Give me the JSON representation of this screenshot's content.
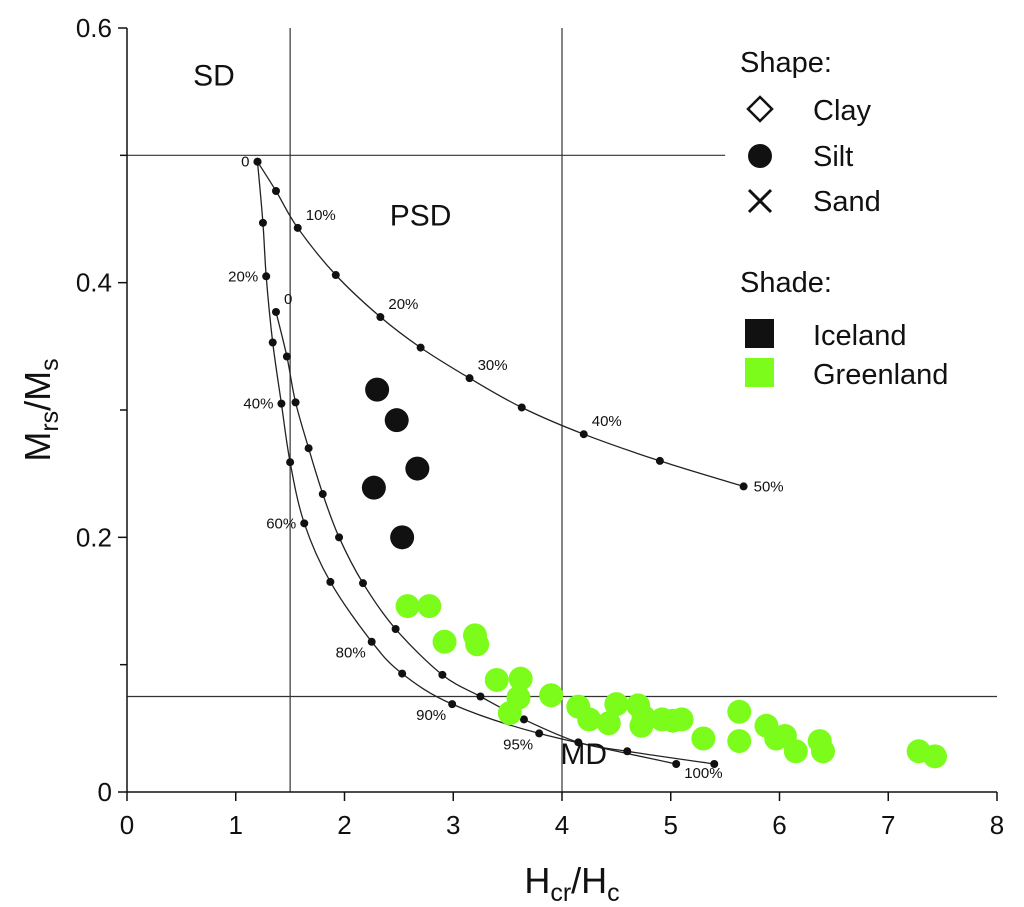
{
  "chart_data": {
    "type": "scatter",
    "title": "",
    "xlabel": {
      "main": "H",
      "sub1": "cr",
      "sep": "/H",
      "sub2": "c"
    },
    "ylabel": {
      "main": "M",
      "sub1": "rs",
      "sep": "/M",
      "sub2": "s"
    },
    "xlim": [
      0,
      8
    ],
    "ylim": [
      0,
      0.6
    ],
    "x_ticks": [
      {
        "value": 0,
        "label": "0"
      },
      {
        "value": 1,
        "label": "1"
      },
      {
        "value": 2,
        "label": "2"
      },
      {
        "value": 3,
        "label": "3"
      },
      {
        "value": 4,
        "label": "4"
      },
      {
        "value": 5,
        "label": "5"
      },
      {
        "value": 6,
        "label": "6"
      },
      {
        "value": 7,
        "label": "7"
      },
      {
        "value": 8,
        "label": "8"
      }
    ],
    "y_ticks": [
      {
        "value": 0,
        "label": "0"
      },
      {
        "value": 0.2,
        "label": "0.2"
      },
      {
        "value": 0.4,
        "label": "0.4"
      },
      {
        "value": 0.6,
        "label": "0.6"
      }
    ],
    "y_minor_ticks": [
      0.1,
      0.3,
      0.5
    ],
    "reference_lines": {
      "vertical": [
        1.5,
        4.0
      ],
      "horizontal": [
        {
          "y": 0.5,
          "x_end": 5.5
        },
        {
          "y": 0.075,
          "x_end": 8
        }
      ]
    },
    "regions": [
      {
        "label": "SD",
        "x": 0.8,
        "y": 0.555
      },
      {
        "label": "PSD",
        "x": 2.7,
        "y": 0.445
      },
      {
        "label": "MD",
        "x": 4.2,
        "y": 0.022
      }
    ],
    "mixing_curves": [
      {
        "name": "SD+MD curve 1",
        "points": [
          [
            1.2,
            0.495
          ],
          [
            1.37,
            0.472
          ],
          [
            1.57,
            0.443
          ],
          [
            1.92,
            0.406
          ],
          [
            2.33,
            0.373
          ],
          [
            2.7,
            0.349
          ],
          [
            3.15,
            0.325
          ],
          [
            3.63,
            0.302
          ],
          [
            4.2,
            0.281
          ],
          [
            4.9,
            0.26
          ],
          [
            5.67,
            0.24
          ]
        ],
        "labels": [
          {
            "text": "0",
            "x": 1.2,
            "y": 0.495,
            "pos": "left"
          },
          {
            "text": "10%",
            "x": 1.57,
            "y": 0.443,
            "pos": "upper-right"
          },
          {
            "text": "20%",
            "x": 2.33,
            "y": 0.373,
            "pos": "upper-right"
          },
          {
            "text": "30%",
            "x": 3.15,
            "y": 0.325,
            "pos": "upper-right"
          },
          {
            "text": "40%",
            "x": 4.2,
            "y": 0.281,
            "pos": "upper-right"
          },
          {
            "text": "50%",
            "x": 5.67,
            "y": 0.24,
            "pos": "right"
          }
        ]
      },
      {
        "name": "SD+MD curve 2",
        "points": [
          [
            1.2,
            0.495
          ],
          [
            1.25,
            0.447
          ],
          [
            1.28,
            0.405
          ],
          [
            1.34,
            0.353
          ],
          [
            1.42,
            0.305
          ],
          [
            1.5,
            0.259
          ],
          [
            1.63,
            0.211
          ],
          [
            1.87,
            0.165
          ],
          [
            2.25,
            0.118
          ],
          [
            2.53,
            0.093
          ],
          [
            2.99,
            0.069
          ],
          [
            3.79,
            0.046
          ],
          [
            5.05,
            0.022
          ]
        ],
        "labels": [
          {
            "text": "20%",
            "x": 1.28,
            "y": 0.405,
            "pos": "left"
          },
          {
            "text": "40%",
            "x": 1.42,
            "y": 0.305,
            "pos": "left"
          },
          {
            "text": "60%",
            "x": 1.63,
            "y": 0.211,
            "pos": "left"
          },
          {
            "text": "80%",
            "x": 2.25,
            "y": 0.118,
            "pos": "lower-left"
          },
          {
            "text": "90%",
            "x": 2.99,
            "y": 0.069,
            "pos": "lower-left"
          },
          {
            "text": "95%",
            "x": 3.79,
            "y": 0.046,
            "pos": "lower-left"
          },
          {
            "text": "100%",
            "x": 5.05,
            "y": 0.022,
            "pos": "lower-right"
          }
        ]
      },
      {
        "name": "SD+MD curve 3",
        "points": [
          [
            1.37,
            0.377
          ],
          [
            1.47,
            0.342
          ],
          [
            1.55,
            0.306
          ],
          [
            1.67,
            0.27
          ],
          [
            1.8,
            0.234
          ],
          [
            1.95,
            0.2
          ],
          [
            2.17,
            0.164
          ],
          [
            2.47,
            0.128
          ],
          [
            2.9,
            0.092
          ],
          [
            3.25,
            0.075
          ],
          [
            3.65,
            0.057
          ],
          [
            4.15,
            0.039
          ],
          [
            4.6,
            0.032
          ],
          [
            5.4,
            0.022
          ]
        ],
        "labels": [
          {
            "text": "0",
            "x": 1.37,
            "y": 0.377,
            "pos": "upper-right"
          }
        ]
      }
    ],
    "series": [
      {
        "name": "Iceland",
        "shape": "Silt",
        "color": "#111111",
        "points": [
          [
            2.3,
            0.316
          ],
          [
            2.48,
            0.292
          ],
          [
            2.67,
            0.254
          ],
          [
            2.27,
            0.239
          ],
          [
            2.53,
            0.2
          ]
        ]
      },
      {
        "name": "Greenland",
        "shape": "Silt",
        "color": "#7cfc1a",
        "points": [
          [
            2.58,
            0.146
          ],
          [
            2.78,
            0.146
          ],
          [
            2.92,
            0.118
          ],
          [
            3.2,
            0.123
          ],
          [
            3.22,
            0.116
          ],
          [
            3.4,
            0.088
          ],
          [
            3.62,
            0.089
          ],
          [
            3.6,
            0.074
          ],
          [
            3.52,
            0.062
          ],
          [
            3.9,
            0.076
          ],
          [
            4.15,
            0.067
          ],
          [
            4.25,
            0.057
          ],
          [
            4.43,
            0.054
          ],
          [
            4.5,
            0.069
          ],
          [
            4.7,
            0.068
          ],
          [
            4.73,
            0.052
          ],
          [
            4.75,
            0.059
          ],
          [
            4.92,
            0.057
          ],
          [
            5.02,
            0.056
          ],
          [
            5.1,
            0.057
          ],
          [
            5.3,
            0.042
          ],
          [
            5.63,
            0.063
          ],
          [
            5.63,
            0.04
          ],
          [
            5.88,
            0.052
          ],
          [
            5.97,
            0.042
          ],
          [
            6.05,
            0.044
          ],
          [
            6.15,
            0.032
          ],
          [
            6.37,
            0.04
          ],
          [
            6.4,
            0.032
          ],
          [
            7.28,
            0.032
          ],
          [
            7.43,
            0.028
          ]
        ]
      }
    ],
    "legend": {
      "placement": "top-right",
      "shape_title": "Shape:",
      "shapes": [
        {
          "label": "Clay",
          "symbol": "diamond"
        },
        {
          "label": "Silt",
          "symbol": "circle"
        },
        {
          "label": "Sand",
          "symbol": "cross"
        }
      ],
      "shade_title": "Shade:",
      "shades": [
        {
          "label": "Iceland",
          "color": "#111111"
        },
        {
          "label": "Greenland",
          "color": "#7cfc1a"
        }
      ]
    }
  }
}
